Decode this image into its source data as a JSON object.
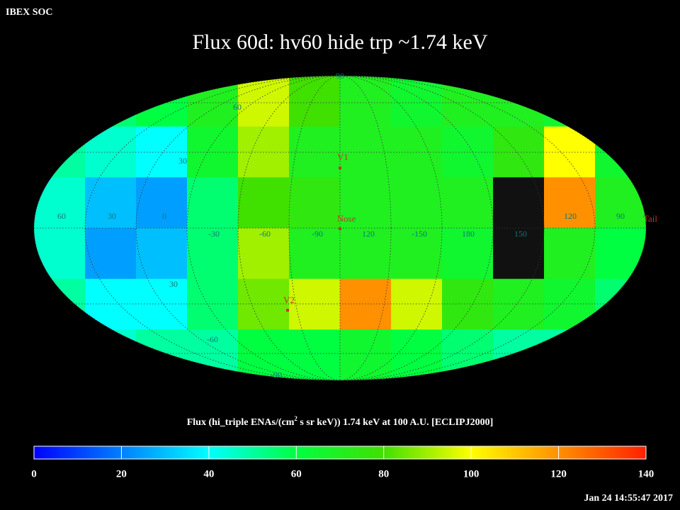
{
  "header": "IBEX SOC",
  "title": "Flux   60d: hv60 hide trp ~1.74 keV",
  "timestamp": "Jan 24 14:55:47 2017",
  "map": {
    "latitude_labels": [
      "90",
      "60",
      "30",
      "30",
      "-60",
      "-90"
    ],
    "longitude_labels": [
      "60",
      "30",
      "0",
      "-30",
      "-60",
      "-90",
      "120",
      "-150",
      "180",
      "150",
      "120",
      "90"
    ],
    "markers": [
      "V1",
      "Nose",
      "V2",
      "Tail"
    ],
    "cells": [
      [
        55,
        55,
        60,
        70,
        95,
        80,
        70,
        65,
        70,
        70,
        65,
        60
      ],
      [
        50,
        45,
        40,
        65,
        90,
        70,
        70,
        70,
        65,
        75,
        100,
        65
      ],
      [
        45,
        30,
        25,
        55,
        80,
        75,
        70,
        70,
        70,
        null,
        120,
        70
      ],
      [
        45,
        25,
        30,
        55,
        90,
        70,
        70,
        70,
        65,
        null,
        70,
        60
      ],
      [
        50,
        40,
        40,
        55,
        85,
        95,
        120,
        95,
        75,
        70,
        65,
        55
      ],
      [
        55,
        45,
        50,
        50,
        60,
        60,
        65,
        60,
        55,
        50,
        50,
        50
      ]
    ]
  },
  "colorbar": {
    "caption": [
      "Flux (hi_triple ENAs/(cm",
      "2",
      " s sr keV))  1.74 keV at 100 A.U. [ECLIPJ2000]"
    ],
    "lim": [
      0,
      140
    ],
    "ticks": [
      0,
      20,
      40,
      60,
      80,
      100,
      120,
      140
    ],
    "colormap": [
      [
        0,
        "#0000ff"
      ],
      [
        40,
        "#00ffff"
      ],
      [
        60,
        "#00ff40"
      ],
      [
        80,
        "#40e000"
      ],
      [
        100,
        "#ffff00"
      ],
      [
        140,
        "#ff2000"
      ]
    ]
  }
}
